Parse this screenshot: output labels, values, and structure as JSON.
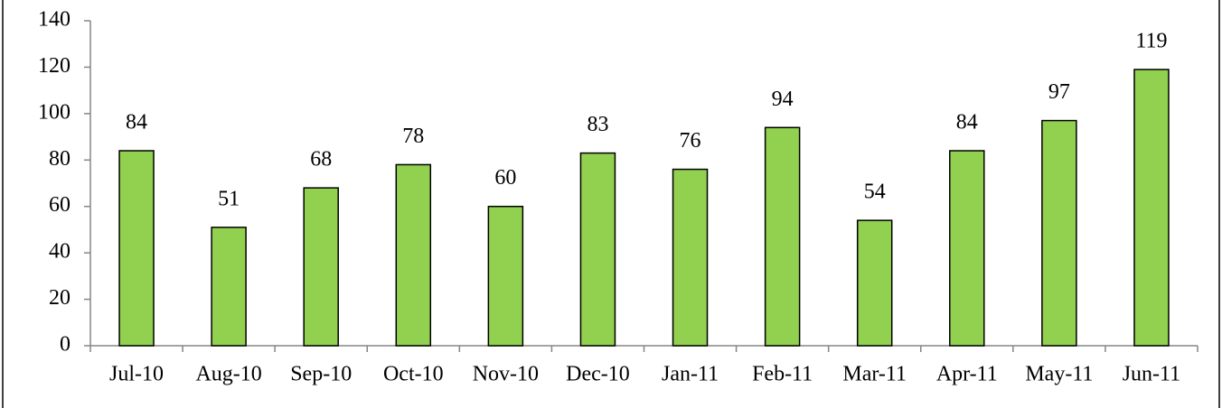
{
  "chart_data": {
    "type": "bar",
    "categories": [
      "Jul-10",
      "Aug-10",
      "Sep-10",
      "Oct-10",
      "Nov-10",
      "Dec-10",
      "Jan-11",
      "Feb-11",
      "Mar-11",
      "Apr-11",
      "May-11",
      "Jun-11"
    ],
    "values": [
      84,
      51,
      68,
      78,
      60,
      83,
      76,
      94,
      54,
      84,
      97,
      119
    ],
    "color": "#92d050",
    "ylim": [
      0,
      140
    ],
    "yticks": [
      0,
      20,
      40,
      60,
      80,
      100,
      120,
      140
    ],
    "grid": false
  }
}
